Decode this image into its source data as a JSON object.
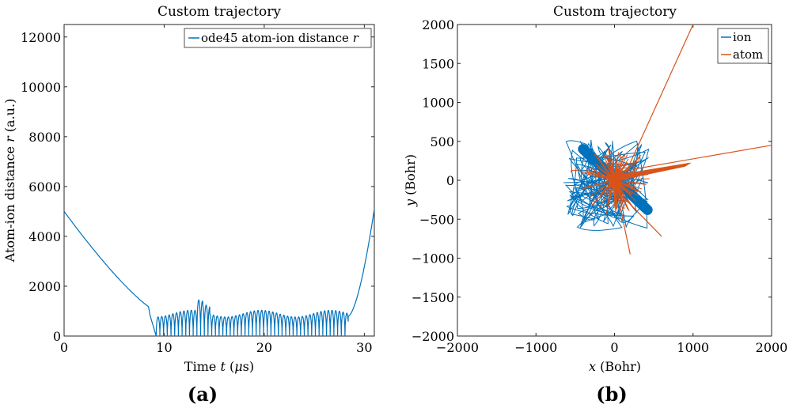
{
  "panels": [
    "(a)",
    "(b)"
  ],
  "chart_data": [
    {
      "type": "line",
      "title": "Custom trajectory",
      "xlabel_parts": [
        "Time ",
        "t",
        " (",
        "μ",
        "s)"
      ],
      "ylabel_parts": [
        "Atom-ion distance ",
        "r",
        " (a.u.)"
      ],
      "xlim": [
        0,
        31
      ],
      "ylim": [
        0,
        12500
      ],
      "xticks": [
        0,
        10,
        20,
        30
      ],
      "yticks": [
        0,
        2000,
        4000,
        6000,
        8000,
        10000,
        12000
      ],
      "grid": false,
      "legend_position": "top-right",
      "series": [
        {
          "name_parts": [
            "ode45 atom-ion distance ",
            "r"
          ],
          "color": "#0072BD",
          "segments": [
            {
              "kind": "decay",
              "t0": 0,
              "t1": 9.2,
              "r0": 5000,
              "r1": 1000
            },
            {
              "kind": "oscillation",
              "t0": 9.2,
              "t1": 28.4,
              "peak": 900,
              "min": 0,
              "period": 0.37,
              "bumps": [
                {
                  "t": 13.6,
                  "peak": 1300
                },
                {
                  "t": 14.2,
                  "peak": 1200
                }
              ]
            },
            {
              "kind": "rise",
              "t0": 28.4,
              "t1": 31,
              "r0": 800,
              "r1": 5100
            }
          ]
        }
      ]
    },
    {
      "type": "line",
      "title": "Custom trajectory",
      "xlabel_parts": [
        "x",
        " (Bohr)"
      ],
      "ylabel_parts": [
        "y",
        " (Bohr)"
      ],
      "xlim": [
        -2000,
        2000
      ],
      "ylim": [
        -2000,
        2000
      ],
      "xticks": [
        -2000,
        -1000,
        0,
        1000,
        2000
      ],
      "yticks": [
        -2000,
        -1500,
        -1000,
        -500,
        0,
        500,
        1000,
        1500,
        2000
      ],
      "grid": false,
      "legend_position": "top-right",
      "series": [
        {
          "name": "ion",
          "color": "#0072BD",
          "band": {
            "from": [
              -400,
              400
            ],
            "to": [
              420,
              -380
            ]
          },
          "wander_extent": [
            -620,
            470,
            -880,
            520
          ]
        },
        {
          "name": "atom",
          "color": "#D95319",
          "escape_lines": [
            {
              "from": [
                100,
                0
              ],
              "to": [
                1000,
                2000
              ]
            },
            {
              "from": [
                0,
                100
              ],
              "to": [
                2000,
                450
              ]
            },
            {
              "from": [
                -50,
                -50
              ],
              "to": [
                600,
                -720
              ]
            },
            {
              "from": [
                0,
                0
              ],
              "to": [
                200,
                -950
              ]
            }
          ],
          "wander_extent": [
            -700,
            800,
            -800,
            940
          ]
        }
      ]
    }
  ]
}
